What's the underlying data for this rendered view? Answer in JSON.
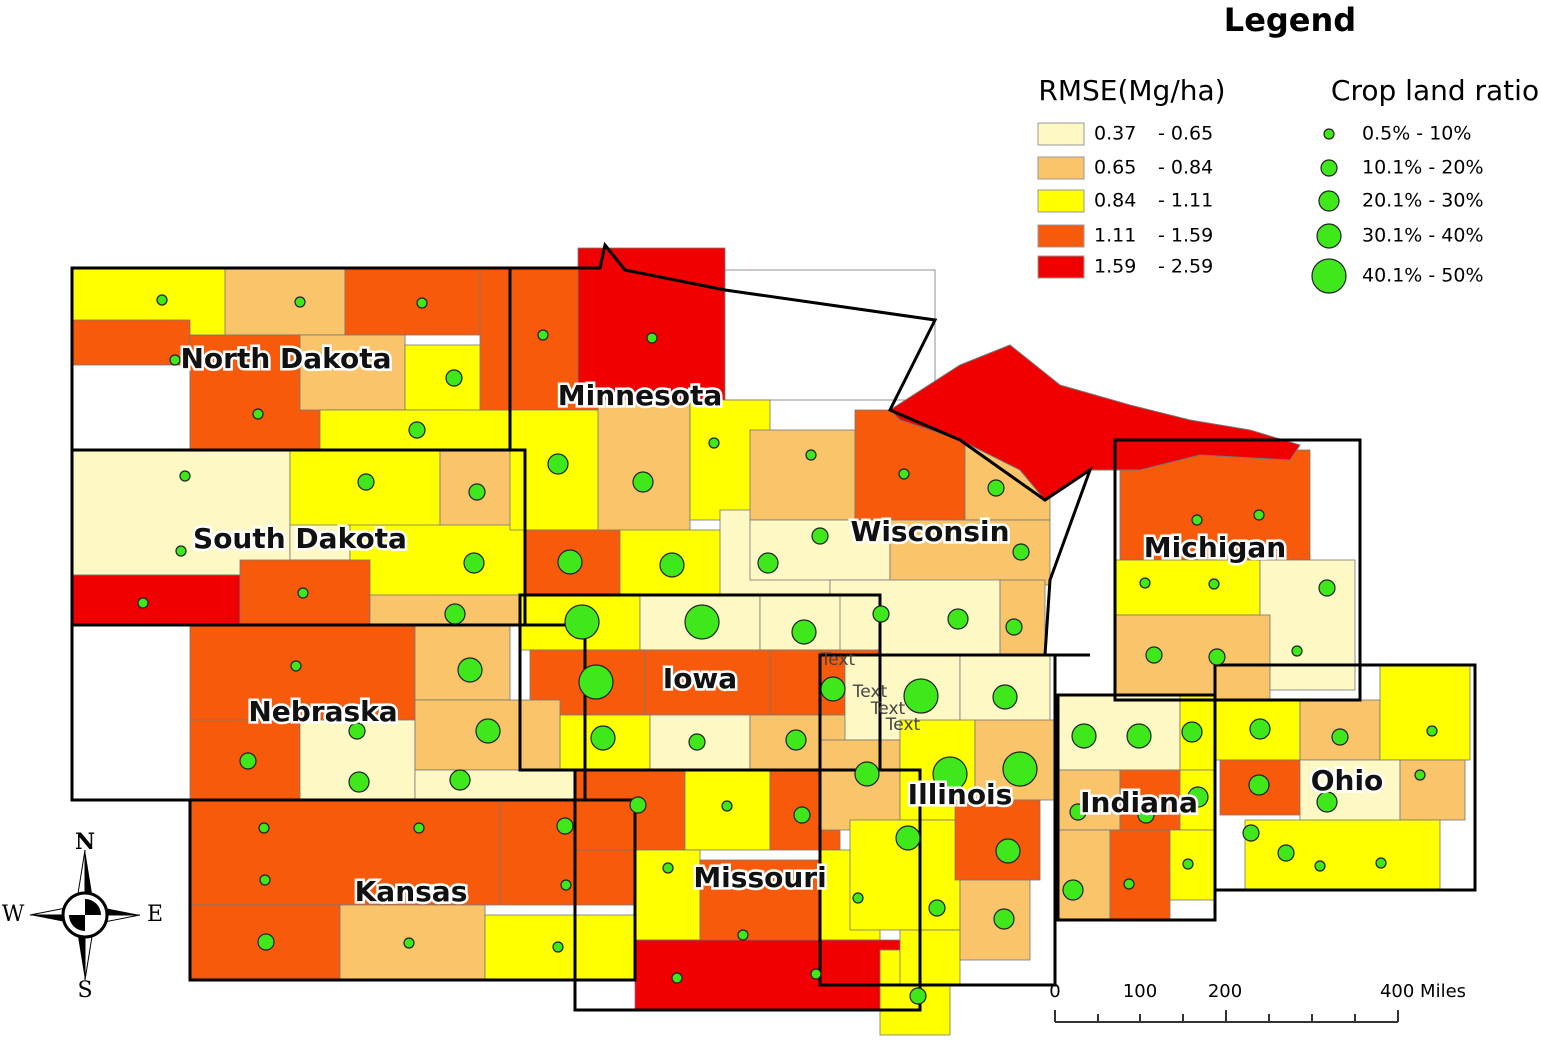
{
  "legend": {
    "title": "Legend",
    "rmse": {
      "title": "RMSE(Mg/ha)",
      "classes": [
        {
          "low": "0.37",
          "high": "- 0.65",
          "color": "#fdf8c4"
        },
        {
          "low": "0.65",
          "high": "- 0.84",
          "color": "#f9c46a"
        },
        {
          "low": "0.84",
          "high": "- 1.11",
          "color": "#ffff00"
        },
        {
          "low": "1.11",
          "high": "- 1.59",
          "color": "#f85a0c"
        },
        {
          "low": "1.59",
          "high": "- 2.59",
          "color": "#f00000"
        }
      ]
    },
    "cropland": {
      "title": "Crop land ratio",
      "color": "#3ee81a",
      "classes": [
        "0.5% - 10%",
        "10.1% - 20%",
        "20.1% - 30%",
        "30.1% - 40%",
        "40.1% - 50%"
      ]
    }
  },
  "states": [
    "North Dakota",
    "Minnesota",
    "South Dakota",
    "Wisconsin",
    "Michigan",
    "Iowa",
    "Nebraska",
    "Illinois",
    "Indiana",
    "Ohio",
    "Missouri",
    "Kansas"
  ],
  "annotations": [
    "Text",
    "Text",
    "Text",
    "Text"
  ],
  "scale_bar": [
    "0",
    "100",
    "200",
    "400 Miles"
  ],
  "compass": {
    "north": "N",
    "south": "S",
    "east": "E",
    "west": "W"
  }
}
